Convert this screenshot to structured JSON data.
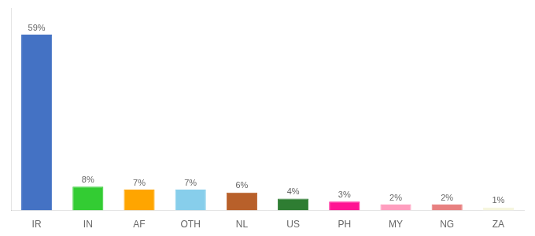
{
  "chart_data": {
    "type": "bar",
    "categories": [
      "IR",
      "IN",
      "AF",
      "OTH",
      "NL",
      "US",
      "PH",
      "MY",
      "NG",
      "ZA"
    ],
    "values": [
      59,
      8,
      7,
      7,
      6,
      4,
      3,
      2,
      2,
      1
    ],
    "value_labels": [
      "59%",
      "8%",
      "7%",
      "7%",
      "6%",
      "4%",
      "3%",
      "2%",
      "2%",
      "1%"
    ],
    "colors": [
      "#4472C4",
      "#33CC33",
      "#FFA500",
      "#87CEEB",
      "#B8602A",
      "#2E7D32",
      "#FF1493",
      "#FF9EBF",
      "#E88080",
      "#F5F5DC"
    ],
    "ylim": [
      0,
      68
    ],
    "grid": false,
    "data_labels": true,
    "tick_labels": "x"
  }
}
